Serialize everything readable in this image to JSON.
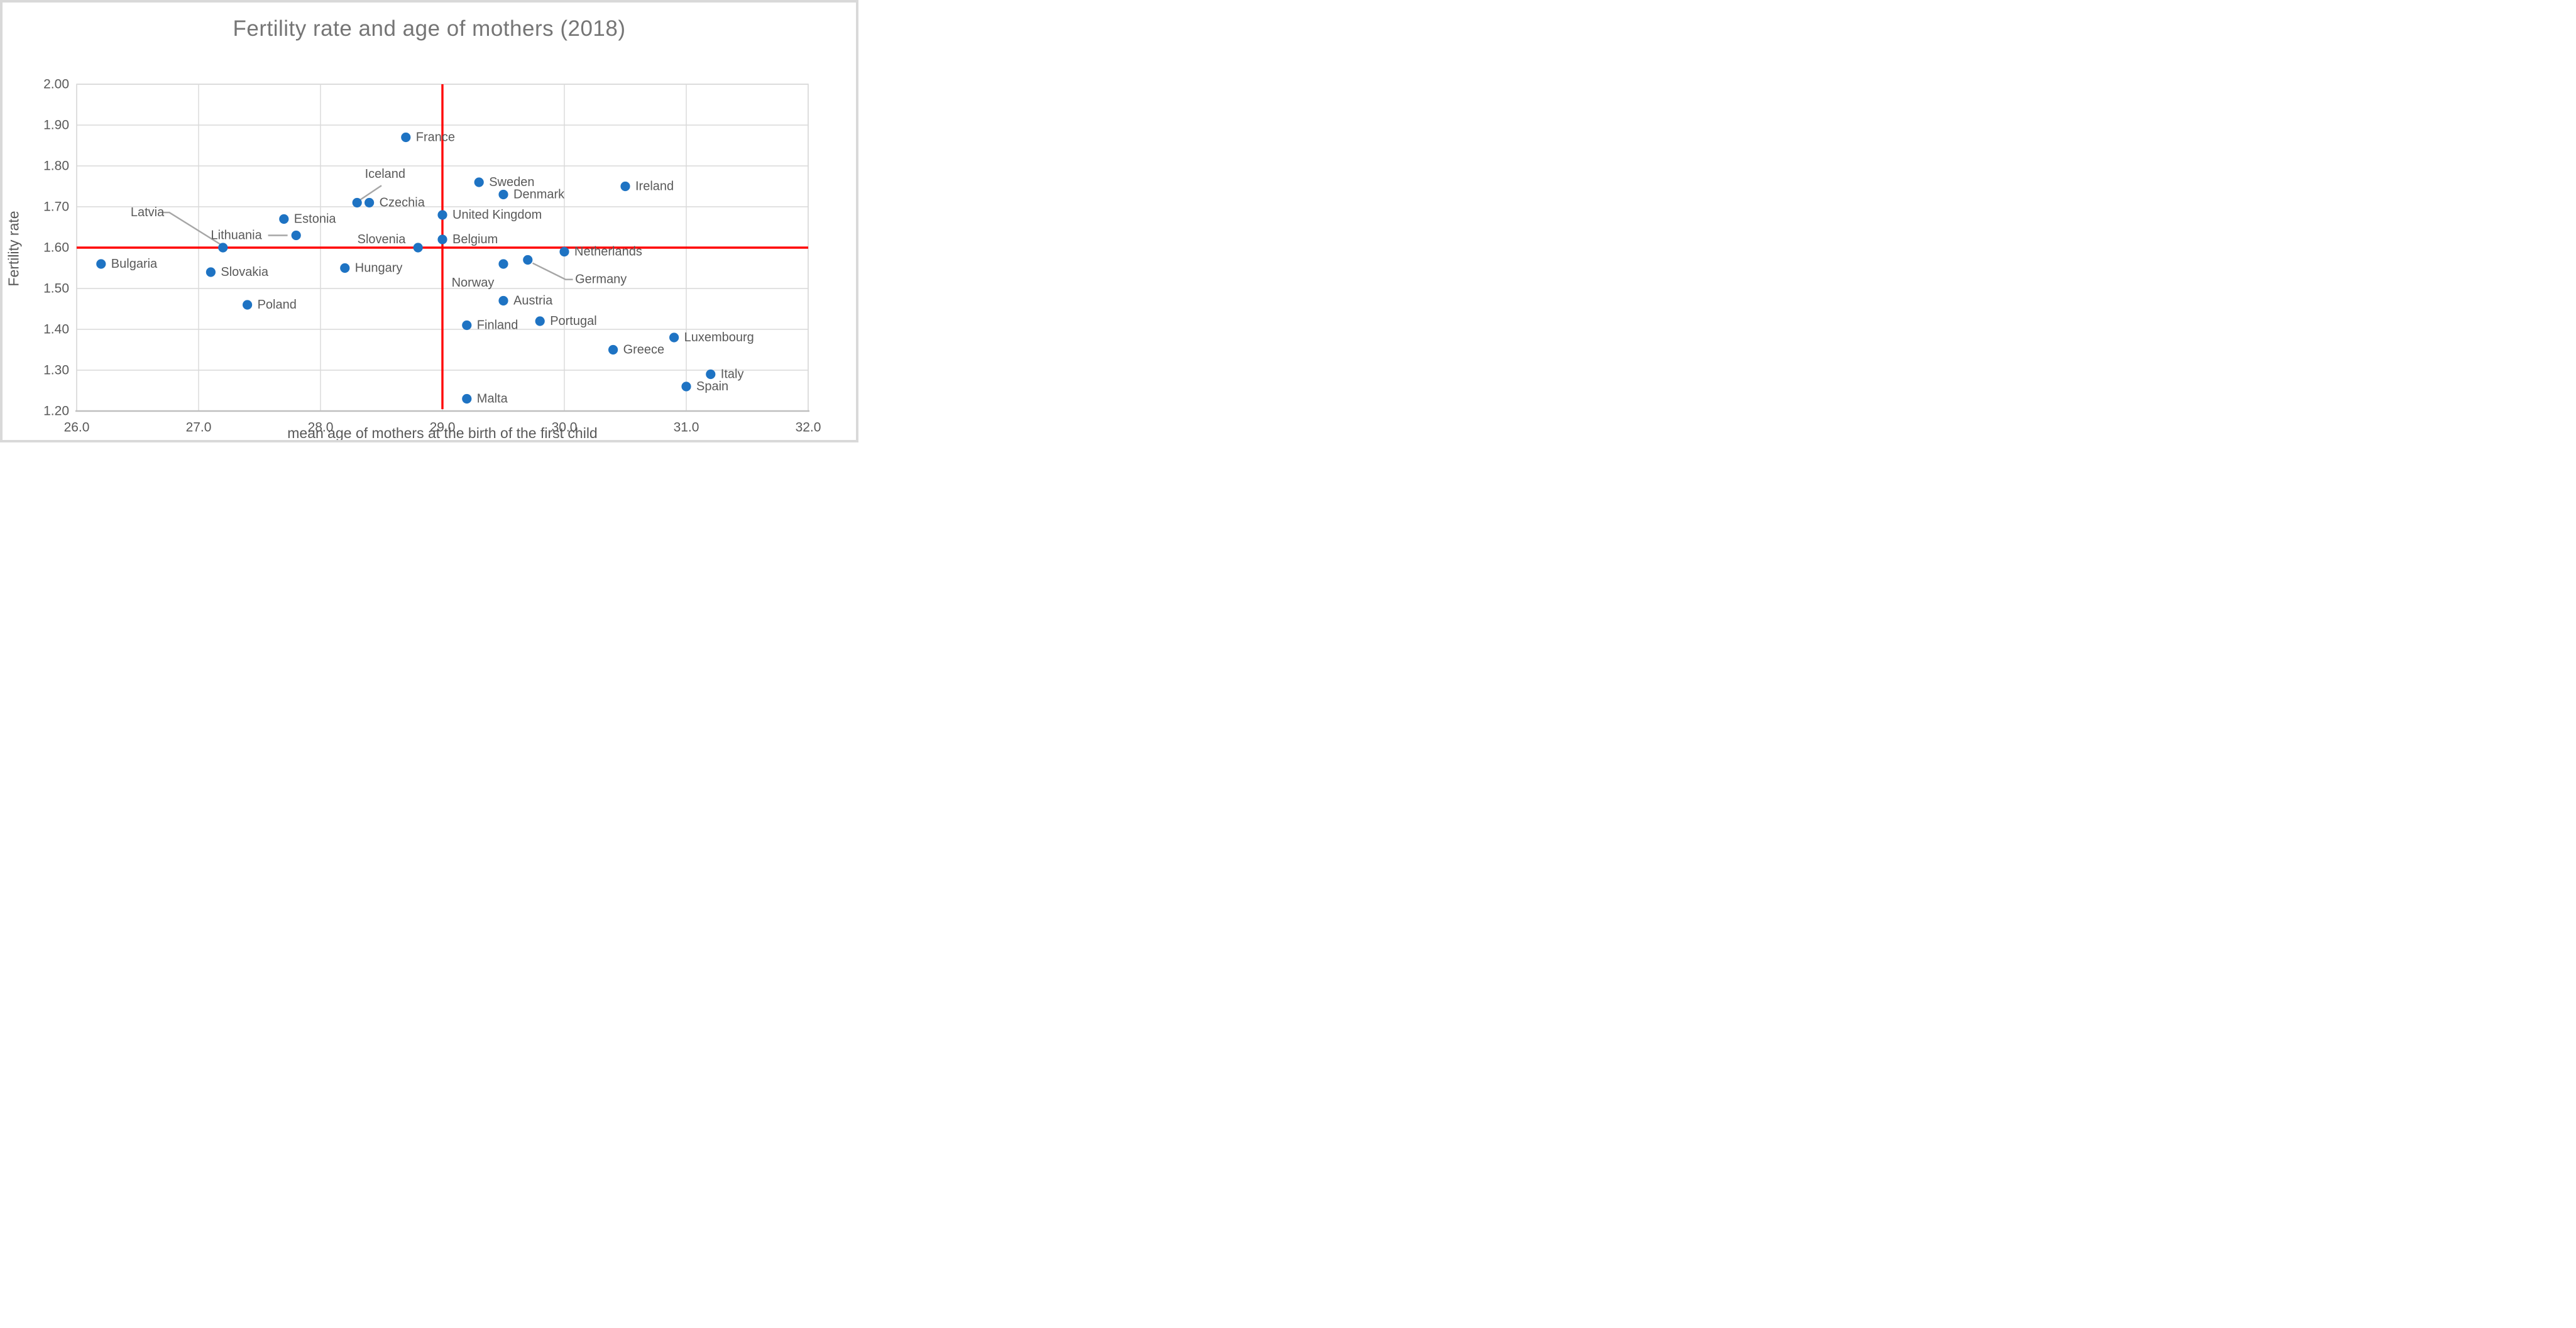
{
  "title": "Fertility rate and age of mothers (2018)",
  "colors": {
    "point": "#1e73c3",
    "reference_line": "#ff0000",
    "gridline": "#d9d9d9",
    "axis_line": "#bfbfbf",
    "leader_line": "#a6a6a6",
    "label_text": "#595959",
    "tick_text": "#595959",
    "title_text": "#757575"
  },
  "chart_data": {
    "type": "scatter",
    "title": "Fertility rate and age of mothers (2018)",
    "xlabel": "mean age of mothers at the birth of the first child",
    "ylabel": "Fertility rate",
    "xlim": [
      26.0,
      32.0
    ],
    "ylim": [
      1.2,
      2.0
    ],
    "x_tick_labels": [
      "26.0",
      "27.0",
      "28.0",
      "29.0",
      "30.0",
      "31.0",
      "32.0"
    ],
    "y_tick_labels": [
      "2.00",
      "1.90",
      "1.80",
      "1.70",
      "1.60",
      "1.50",
      "1.40",
      "1.30",
      "1.20"
    ],
    "grid": true,
    "legend": "none",
    "reference_lines": {
      "vertical_x": 29.0,
      "horizontal_y": 1.6
    },
    "points": [
      {
        "name": "Bulgaria",
        "x": 26.2,
        "y": 1.56,
        "label": {
          "mode": "right"
        }
      },
      {
        "name": "Slovakia",
        "x": 27.1,
        "y": 1.54,
        "label": {
          "mode": "right"
        }
      },
      {
        "name": "Latvia",
        "x": 27.2,
        "y": 1.6,
        "label": {
          "mode": "custom",
          "at": [
            26.58,
            1.686
          ],
          "leader": [
            [
              26.7,
              1.686
            ],
            [
              26.76,
              1.686
            ],
            [
              27.19,
              1.606
            ]
          ]
        }
      },
      {
        "name": "Poland",
        "x": 27.4,
        "y": 1.46,
        "label": {
          "mode": "right"
        }
      },
      {
        "name": "Estonia",
        "x": 27.7,
        "y": 1.67,
        "label": {
          "mode": "right"
        }
      },
      {
        "name": "Lithuania",
        "x": 27.8,
        "y": 1.63,
        "label": {
          "mode": "custom",
          "at": [
            27.31,
            1.63
          ],
          "leader": [
            [
              27.57,
              1.63
            ],
            [
              27.73,
              1.63
            ]
          ]
        }
      },
      {
        "name": "Hungary",
        "x": 28.2,
        "y": 1.55,
        "label": {
          "mode": "right"
        }
      },
      {
        "name": "Iceland",
        "x": 28.3,
        "y": 1.71,
        "label": {
          "mode": "custom",
          "at": [
            28.53,
            1.78
          ],
          "leader": [
            [
              28.5,
              1.752
            ],
            [
              28.32,
              1.716
            ]
          ]
        }
      },
      {
        "name": "Czechia",
        "x": 28.4,
        "y": 1.71,
        "label": {
          "mode": "right"
        }
      },
      {
        "name": "France",
        "x": 28.7,
        "y": 1.87,
        "label": {
          "mode": "right"
        }
      },
      {
        "name": "Slovenia",
        "x": 28.8,
        "y": 1.6,
        "label": {
          "mode": "custom",
          "at": [
            28.5,
            1.62
          ]
        }
      },
      {
        "name": "United Kingdom",
        "x": 29.0,
        "y": 1.68,
        "label": {
          "mode": "right"
        }
      },
      {
        "name": "Belgium",
        "x": 29.0,
        "y": 1.62,
        "label": {
          "mode": "right"
        }
      },
      {
        "name": "Finland",
        "x": 29.2,
        "y": 1.41,
        "label": {
          "mode": "right"
        }
      },
      {
        "name": "Malta",
        "x": 29.2,
        "y": 1.23,
        "label": {
          "mode": "right"
        }
      },
      {
        "name": "Sweden",
        "x": 29.3,
        "y": 1.76,
        "label": {
          "mode": "right"
        }
      },
      {
        "name": "Denmark",
        "x": 29.5,
        "y": 1.73,
        "label": {
          "mode": "right"
        }
      },
      {
        "name": "Norway",
        "x": 29.5,
        "y": 1.56,
        "label": {
          "mode": "custom",
          "at": [
            29.25,
            1.514
          ]
        }
      },
      {
        "name": "Austria",
        "x": 29.5,
        "y": 1.47,
        "label": {
          "mode": "right"
        }
      },
      {
        "name": "Germany",
        "x": 29.7,
        "y": 1.57,
        "label": {
          "mode": "custom",
          "at": [
            30.3,
            1.522
          ],
          "leader": [
            [
              30.07,
              1.522
            ],
            [
              30.01,
              1.522
            ],
            [
              29.74,
              1.562
            ]
          ]
        }
      },
      {
        "name": "Portugal",
        "x": 29.8,
        "y": 1.42,
        "label": {
          "mode": "right"
        }
      },
      {
        "name": "Netherlands",
        "x": 30.0,
        "y": 1.59,
        "label": {
          "mode": "right"
        }
      },
      {
        "name": "Greece",
        "x": 30.4,
        "y": 1.35,
        "label": {
          "mode": "right"
        }
      },
      {
        "name": "Ireland",
        "x": 30.5,
        "y": 1.75,
        "label": {
          "mode": "right"
        }
      },
      {
        "name": "Luxembourg",
        "x": 30.9,
        "y": 1.38,
        "label": {
          "mode": "right"
        }
      },
      {
        "name": "Spain",
        "x": 31.0,
        "y": 1.26,
        "label": {
          "mode": "right"
        }
      },
      {
        "name": "Italy",
        "x": 31.2,
        "y": 1.29,
        "label": {
          "mode": "right"
        }
      }
    ]
  }
}
